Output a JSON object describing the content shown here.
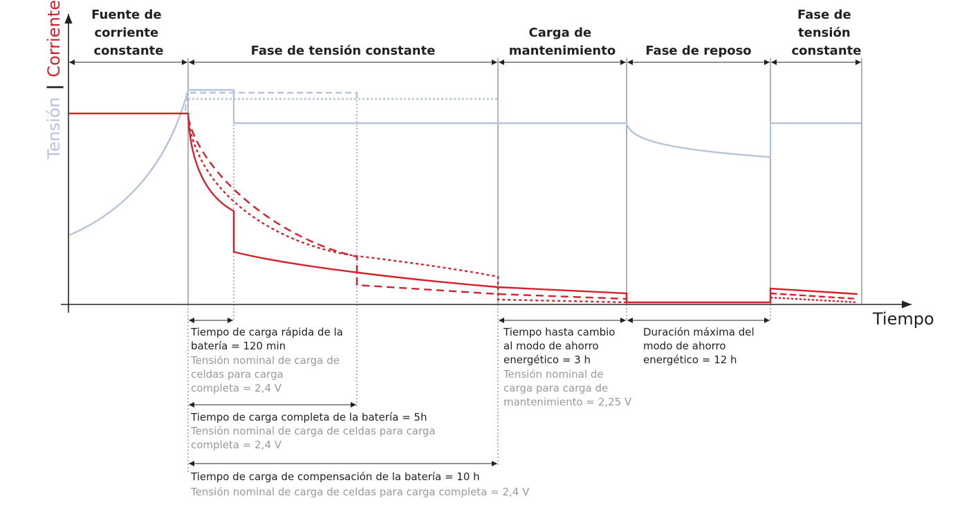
{
  "axis": {
    "y_voltage_label": "Tensión",
    "y_separator": "|",
    "y_current_label": "Corriente",
    "x_label": "Tiempo"
  },
  "phases": {
    "p1": [
      "Fuente de",
      "corriente",
      "constante"
    ],
    "p2": [
      "Fase de tensión constante"
    ],
    "p3": [
      "Carga de",
      "mantenimiento"
    ],
    "p4": [
      "Fase de reposo"
    ],
    "p5": [
      "Fase de",
      "tensión",
      "constante"
    ]
  },
  "notes": {
    "fast": {
      "title": [
        "Tiempo de carga rápida de la",
        "batería = 120 min"
      ],
      "sub": [
        "Tensión nominal de carga de",
        "celdas para carga",
        "completa = 2,4 V"
      ]
    },
    "full": {
      "title": [
        "Tiempo de carga completa de la batería = 5h"
      ],
      "sub": [
        "Tensión nominal de carga de celdas para carga",
        "completa = 2,4 V"
      ]
    },
    "equal": {
      "title": [
        "Tiempo de carga de compensación de la batería = 10 h"
      ],
      "sub": [
        "Tensión nominal de carga de celdas para carga completa = 2,4 V"
      ]
    },
    "maint": {
      "title": [
        "Tiempo hasta cambio",
        "al modo de ahorro",
        "energético = 3 h"
      ],
      "sub": [
        "Tensión nominal de",
        "carga para carga de",
        "mantenimiento = 2,25 V"
      ]
    },
    "rest": {
      "title": [
        "Duración máxima del",
        "modo de ahorro",
        "energético = 12 h"
      ]
    }
  },
  "colors": {
    "voltage": "#b5c3d9",
    "current": "#d4202a",
    "text": "#222222",
    "sub_text": "#999999",
    "axis": "#222222"
  }
}
